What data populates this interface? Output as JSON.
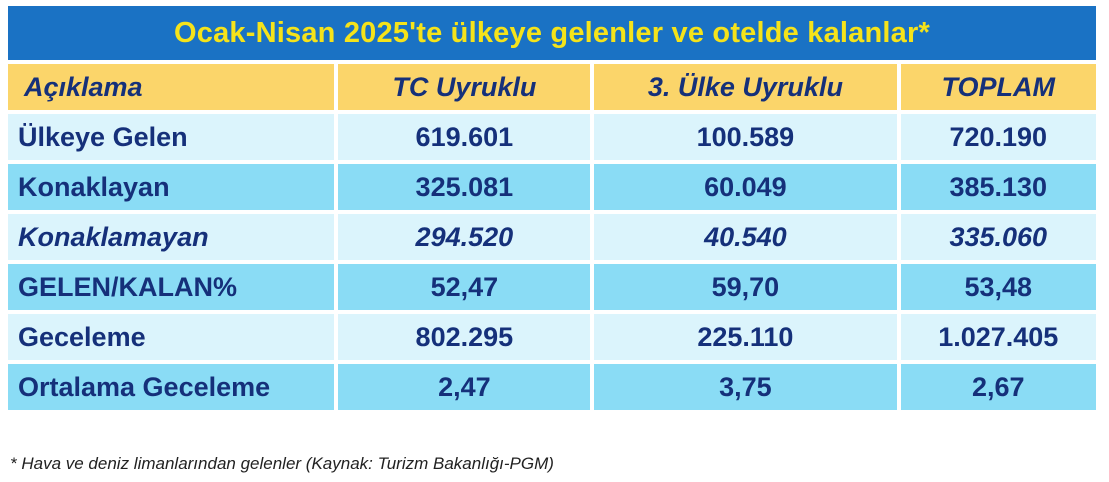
{
  "title": "Ocak-Nisan 2025'te ülkeye gelenler ve otelde kalanlar*",
  "colors": {
    "title_bg": "#1a72c4",
    "title_text": "#f5e31a",
    "header_bg": "#fbd56a",
    "row_light": "#dbf4fc",
    "row_dark": "#8adcf5",
    "text": "#15307a"
  },
  "table": {
    "headers": [
      "Açıklama",
      "TC Uyruklu",
      "3. Ülke Uyruklu",
      "TOPLAM"
    ],
    "rows": [
      {
        "label": "Ülkeye Gelen",
        "tc": "619.601",
        "other": "100.589",
        "total": "720.190"
      },
      {
        "label": "Konaklayan",
        "tc": "325.081",
        "other": "60.049",
        "total": "385.130"
      },
      {
        "label": "Konaklamayan",
        "tc": "294.520",
        "other": "40.540",
        "total": "335.060"
      },
      {
        "label": "GELEN/KALAN%",
        "tc": "52,47",
        "other": "59,70",
        "total": "53,48"
      },
      {
        "label": "Geceleme",
        "tc": "802.295",
        "other": "225.110",
        "total": "1.027.405"
      },
      {
        "label": "Ortalama Geceleme",
        "tc": "2,47",
        "other": "3,75",
        "total": "2,67"
      }
    ]
  },
  "footnote": "* Hava ve deniz limanlarından gelenler (Kaynak: Turizm Bakanlığı-PGM)"
}
